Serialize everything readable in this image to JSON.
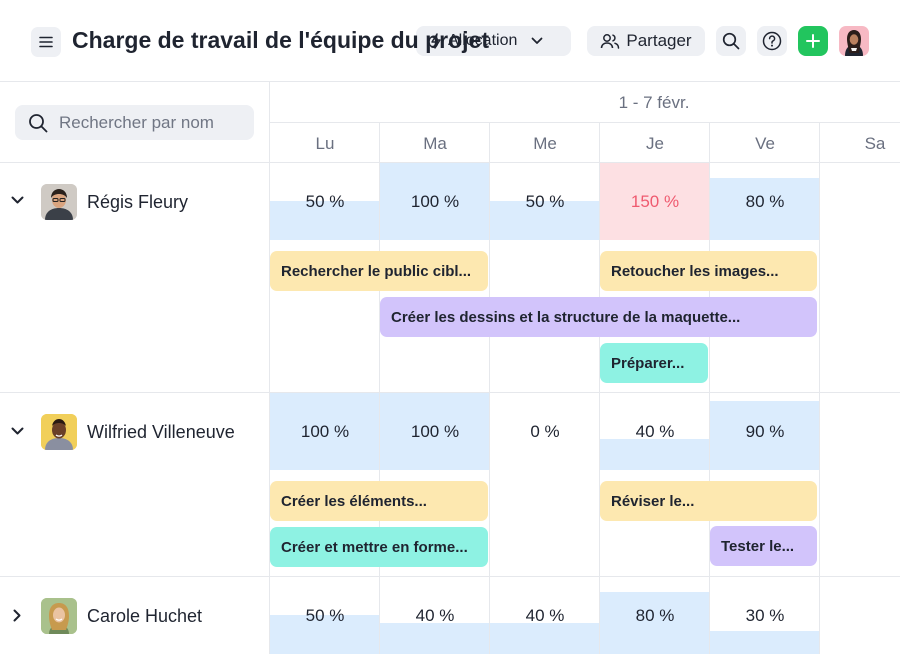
{
  "header": {
    "title": "Charge de travail de l'équipe du projet",
    "allocation_label": "Allocation",
    "share_label": "Partager"
  },
  "search": {
    "placeholder": "Rechercher par nom"
  },
  "calendar": {
    "week_label": "1 - 7 févr.",
    "days": [
      "Lu",
      "Ma",
      "Me",
      "Je",
      "Ve",
      "Sa"
    ]
  },
  "people": [
    {
      "name": "Régis Fleury",
      "loads": [
        {
          "label": "50 %",
          "value": 50
        },
        {
          "label": "100 %",
          "value": 100
        },
        {
          "label": "50 %",
          "value": 50
        },
        {
          "label": "150 %",
          "value": 150
        },
        {
          "label": "80 %",
          "value": 80
        }
      ],
      "tasks": [
        {
          "label": "Rechercher le public cibl...",
          "color": "yellow"
        },
        {
          "label": "Retoucher les images...",
          "color": "yellow"
        },
        {
          "label": "Créer les dessins et la structure de la maquette...",
          "color": "purple"
        },
        {
          "label": "Préparer...",
          "color": "teal"
        }
      ]
    },
    {
      "name": "Wilfried Villeneuve",
      "loads": [
        {
          "label": "100 %",
          "value": 100
        },
        {
          "label": "100 %",
          "value": 100
        },
        {
          "label": "0 %",
          "value": 0
        },
        {
          "label": "40 %",
          "value": 40
        },
        {
          "label": "90 %",
          "value": 90
        }
      ],
      "tasks": [
        {
          "label": "Créer les éléments...",
          "color": "yellow"
        },
        {
          "label": "Réviser le...",
          "color": "yellow"
        },
        {
          "label": "Créer et mettre en forme...",
          "color": "teal"
        },
        {
          "label": "Tester le...",
          "color": "purple"
        }
      ]
    },
    {
      "name": "Carole Huchet",
      "loads": [
        {
          "label": "50 %",
          "value": 50
        },
        {
          "label": "40 %",
          "value": 40
        },
        {
          "label": "40 %",
          "value": 40
        },
        {
          "label": "80 %",
          "value": 80
        },
        {
          "label": "30 %",
          "value": 30
        }
      ],
      "tasks": []
    }
  ],
  "colors": {
    "capacity_fill": "#dbecfd",
    "overload_fill": "#fde0e3",
    "overload_text": "#ef5a6f",
    "add_button": "#22c55e",
    "task_yellow": "#fde8b0",
    "task_purple": "#d2c4fb",
    "task_teal": "#8ef2e3"
  },
  "icons": {
    "menu": "menu-icon",
    "allocation": "lightning-icon",
    "chevron": "chevron-down-icon",
    "share": "people-icon",
    "search": "search-icon",
    "help": "help-icon",
    "add": "plus-icon",
    "expand": "chevron-down-icon",
    "collapse": "chevron-right-icon"
  }
}
